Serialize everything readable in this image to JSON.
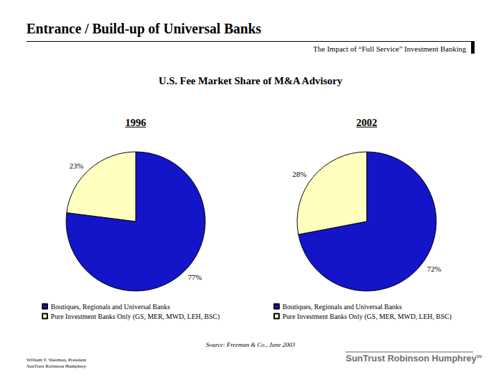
{
  "slide": {
    "title": "Entrance / Build-up of Universal Banks",
    "subtitle": "The Impact of “Full Service” Investment Banking",
    "chart_title": "U.S. Fee Market Share of M&A Advisory",
    "source": "Source: Freeman & Co., June 2003",
    "footer": [
      "William T. Sherman, President",
      "SunTrust Robinson Humphrey"
    ],
    "logo": "SunTrust Robinson Humphrey",
    "logo_mark": "SM"
  },
  "chart_data": [
    {
      "type": "pie",
      "title": "1996",
      "categories": [
        "Boutiques, Regionals and Universal Banks",
        "Pure Investment Banks Only (GS, MER, MWD, LEH, BSC)"
      ],
      "values": [
        77,
        23
      ],
      "value_labels": [
        "77%",
        "23%"
      ],
      "colors": [
        "#1414c8",
        "#ffffc0"
      ],
      "data_labels": true,
      "legend": "bottom"
    },
    {
      "type": "pie",
      "title": "2002",
      "categories": [
        "Boutiques, Regionals and Universal Banks",
        "Pure Investment Banks Only (GS, MER, MWD, LEH, BSC)"
      ],
      "values": [
        72,
        28
      ],
      "value_labels": [
        "72%",
        "28%"
      ],
      "colors": [
        "#1414c8",
        "#ffffc0"
      ],
      "data_labels": true,
      "legend": "bottom"
    }
  ]
}
